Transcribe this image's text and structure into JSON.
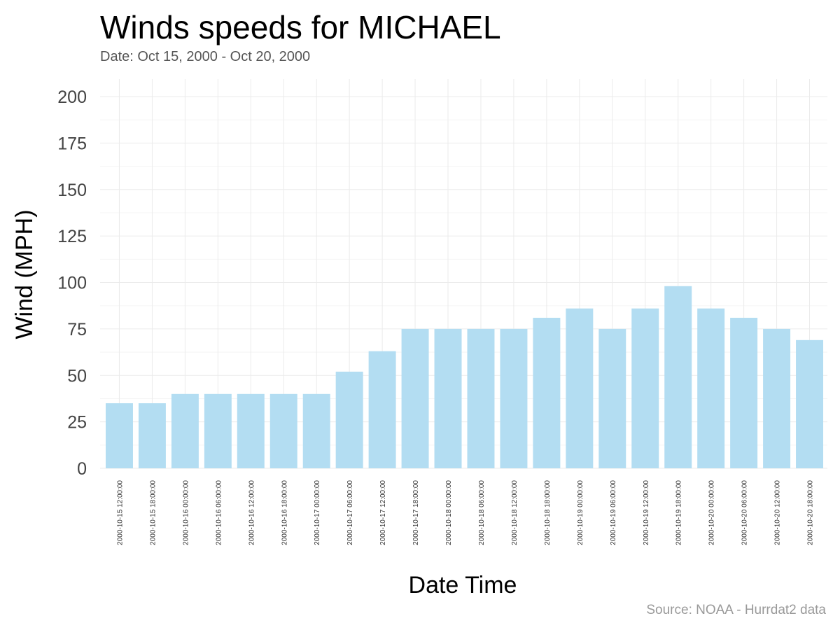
{
  "title": "Winds speeds for MICHAEL",
  "subtitle": "Date:  Oct 15, 2000 - Oct 20, 2000",
  "caption": "Source: NOAA - Hurrdat2 data",
  "chart_data": {
    "type": "bar",
    "xlabel": "Date Time",
    "ylabel": "Wind (MPH)",
    "ylim": [
      0,
      200
    ],
    "yticks": [
      0,
      25,
      50,
      75,
      100,
      125,
      150,
      175,
      200
    ],
    "grid": true,
    "bar_color": "#b3ddf2",
    "categories": [
      "2000-10-15 12:00:00",
      "2000-10-15 18:00:00",
      "2000-10-16 00:00:00",
      "2000-10-16 06:00:00",
      "2000-10-16 12:00:00",
      "2000-10-16 18:00:00",
      "2000-10-17 00:00:00",
      "2000-10-17 06:00:00",
      "2000-10-17 12:00:00",
      "2000-10-17 18:00:00",
      "2000-10-18 00:00:00",
      "2000-10-18 06:00:00",
      "2000-10-18 12:00:00",
      "2000-10-18 18:00:00",
      "2000-10-19 00:00:00",
      "2000-10-19 06:00:00",
      "2000-10-19 12:00:00",
      "2000-10-19 18:00:00",
      "2000-10-20 00:00:00",
      "2000-10-20 06:00:00",
      "2000-10-20 12:00:00",
      "2000-10-20 18:00:00"
    ],
    "values": [
      35,
      35,
      40,
      40,
      40,
      40,
      40,
      52,
      63,
      75,
      75,
      75,
      75,
      81,
      86,
      75,
      86,
      98,
      86,
      81,
      75,
      69
    ]
  }
}
